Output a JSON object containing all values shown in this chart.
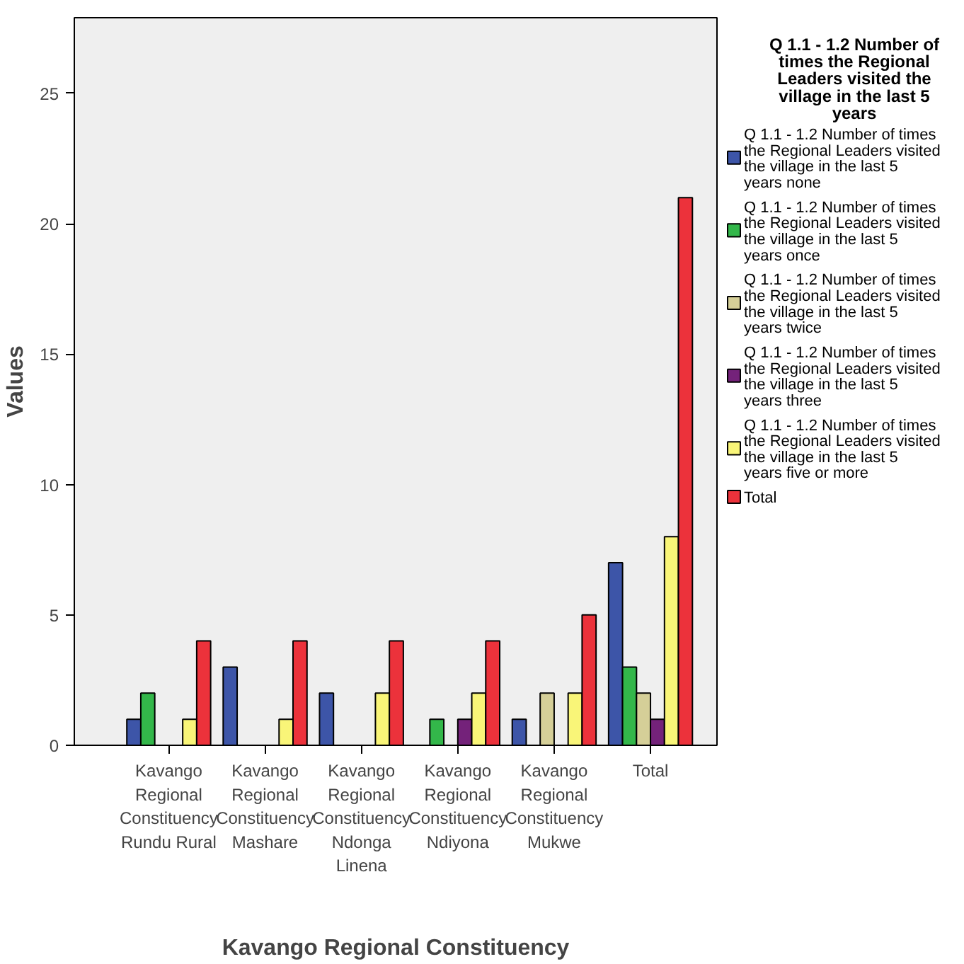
{
  "chart_data": {
    "type": "bar",
    "xlabel": "Kavango Regional Constituency",
    "ylabel": "Values",
    "legend_title": "Q 1.1 - 1.2 Number of times the Regional Leaders visited the village in the last 5 years",
    "categories": [
      "Kavango Regional Constituency Rundu Rural",
      "Kavango Regional Constituency Mashare",
      "Kavango Regional Constituency Ndonga Linena",
      "Kavango Regional Constituency Ndiyona",
      "Kavango Regional Constituency Mukwe",
      "Total"
    ],
    "series": [
      {
        "name": "Q 1.1 - 1.2 Number of times the Regional Leaders visited the village in the last 5 years none",
        "color": "#3d55a8",
        "values": [
          1,
          3,
          2,
          0,
          1,
          7
        ]
      },
      {
        "name": "Q 1.1 - 1.2 Number of times the Regional Leaders visited the village in the last 5 years once",
        "color": "#33b74a",
        "values": [
          2,
          0,
          0,
          1,
          0,
          3
        ]
      },
      {
        "name": "Q 1.1 - 1.2 Number of times the Regional Leaders visited the village in the last 5 years twice",
        "color": "#d5cf98",
        "values": [
          0,
          0,
          0,
          0,
          2,
          2
        ]
      },
      {
        "name": "Q 1.1 - 1.2 Number of times the Regional Leaders visited the village in the last 5 years three",
        "color": "#74227a",
        "values": [
          0,
          0,
          0,
          1,
          0,
          1
        ]
      },
      {
        "name": "Q 1.1 - 1.2 Number of times the Regional Leaders visited the village in the last 5 years five or more",
        "color": "#f9f578",
        "values": [
          1,
          1,
          2,
          2,
          2,
          8
        ]
      },
      {
        "name": "Total",
        "color": "#ec323b",
        "values": [
          4,
          4,
          4,
          4,
          5,
          21
        ]
      }
    ],
    "ylim": [
      0,
      27.9
    ],
    "yticks": [
      0,
      5,
      10,
      15,
      20,
      25
    ],
    "grid": false,
    "legend": "right"
  }
}
